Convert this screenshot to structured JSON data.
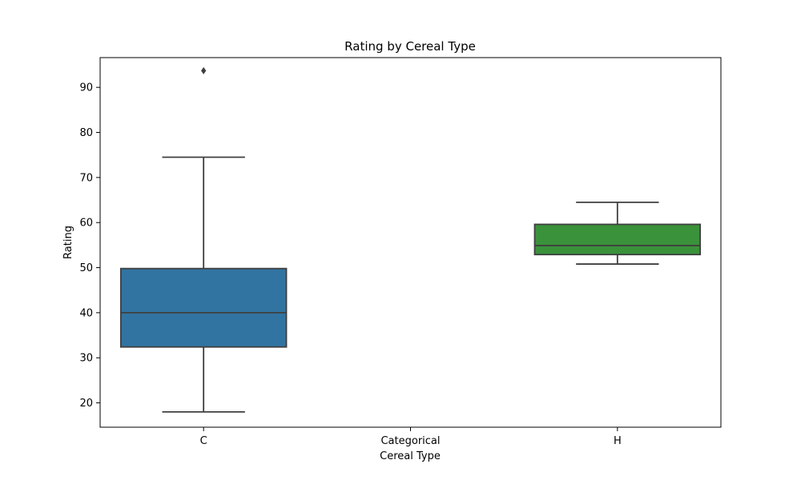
{
  "chart_data": {
    "type": "box",
    "title": "Rating by Cereal Type",
    "xlabel": "Cereal Type",
    "ylabel": "Rating",
    "categories": [
      "C",
      "Categorical",
      "H"
    ],
    "ylim": [
      14.6,
      96.6
    ],
    "yticks": [
      20,
      30,
      40,
      50,
      60,
      70,
      80,
      90
    ],
    "grid": false,
    "legend": "none",
    "boxes": [
      {
        "category": "C",
        "whisker_low": 18.0,
        "q1": 32.4,
        "median": 40.0,
        "q3": 49.8,
        "whisker_high": 74.5,
        "outliers": [
          93.7
        ],
        "color": "#3274a1"
      },
      {
        "category": "H",
        "whisker_low": 50.8,
        "q1": 52.9,
        "median": 54.9,
        "q3": 59.6,
        "whisker_high": 64.5,
        "outliers": [],
        "color": "#3a923a"
      }
    ],
    "edge_color": "#3f3f3f"
  }
}
